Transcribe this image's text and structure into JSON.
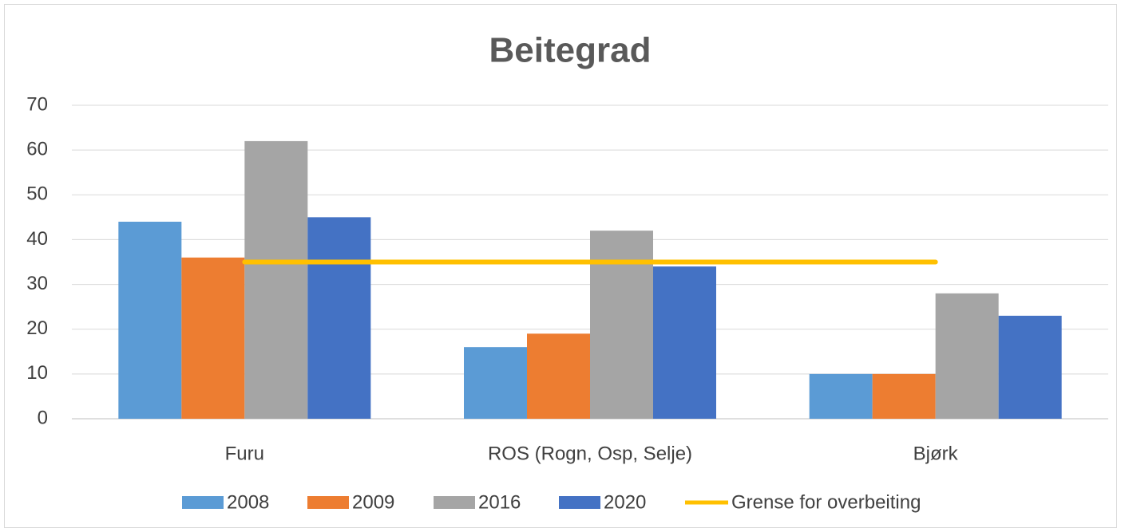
{
  "chart_data": {
    "type": "bar",
    "title": "Beitegrad",
    "categories": [
      "Furu",
      "ROS (Rogn, Osp, Selje)",
      "Bjørk"
    ],
    "series": [
      {
        "name": "2008",
        "color": "#5b9bd5",
        "values": [
          44,
          16,
          10
        ]
      },
      {
        "name": "2009",
        "color": "#ed7d31",
        "values": [
          36,
          19,
          10
        ]
      },
      {
        "name": "2016",
        "color": "#a5a5a5",
        "values": [
          62,
          42,
          28
        ]
      },
      {
        "name": "2020",
        "color": "#4472c4",
        "values": [
          45,
          34,
          23
        ]
      },
      {
        "name": "Grense for overbeiting",
        "type": "line",
        "color": "#ffc000",
        "values": [
          35,
          35,
          35
        ]
      }
    ],
    "ylim": [
      0,
      70
    ],
    "yticks": [
      0,
      10,
      20,
      30,
      40,
      50,
      60,
      70
    ],
    "grid": true,
    "legend": "bottom"
  }
}
